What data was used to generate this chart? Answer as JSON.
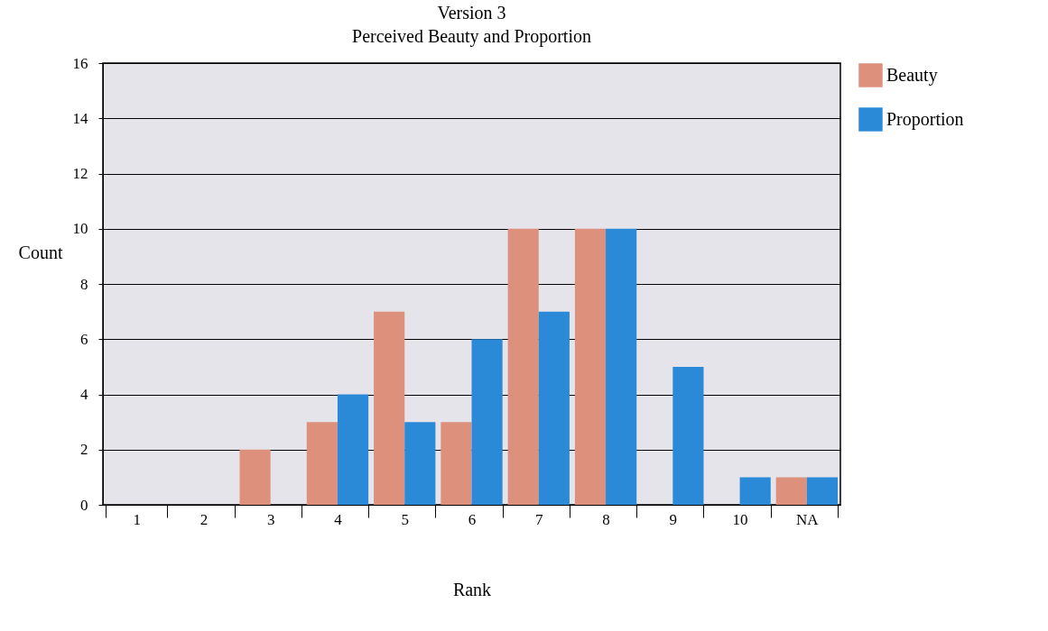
{
  "chart_data": {
    "type": "bar",
    "title": "Version 3",
    "subtitle": "Perceived Beauty and Proportion",
    "xlabel": "Rank",
    "ylabel": "Count",
    "categories": [
      "1",
      "2",
      "3",
      "4",
      "5",
      "6",
      "7",
      "8",
      "9",
      "10",
      "NA"
    ],
    "series": [
      {
        "name": "Beauty",
        "color": "#dd907c",
        "values": [
          0,
          0,
          2,
          3,
          7,
          3,
          10,
          10,
          0,
          0,
          1
        ]
      },
      {
        "name": "Proportion",
        "color": "#2b8ad8",
        "values": [
          0,
          0,
          0,
          4,
          3,
          6,
          7,
          10,
          5,
          1,
          1
        ]
      }
    ],
    "ylim": [
      0,
      16
    ],
    "yticks": [
      0,
      2,
      4,
      6,
      8,
      10,
      12,
      14,
      16
    ],
    "grid": "y",
    "legend": "right"
  }
}
